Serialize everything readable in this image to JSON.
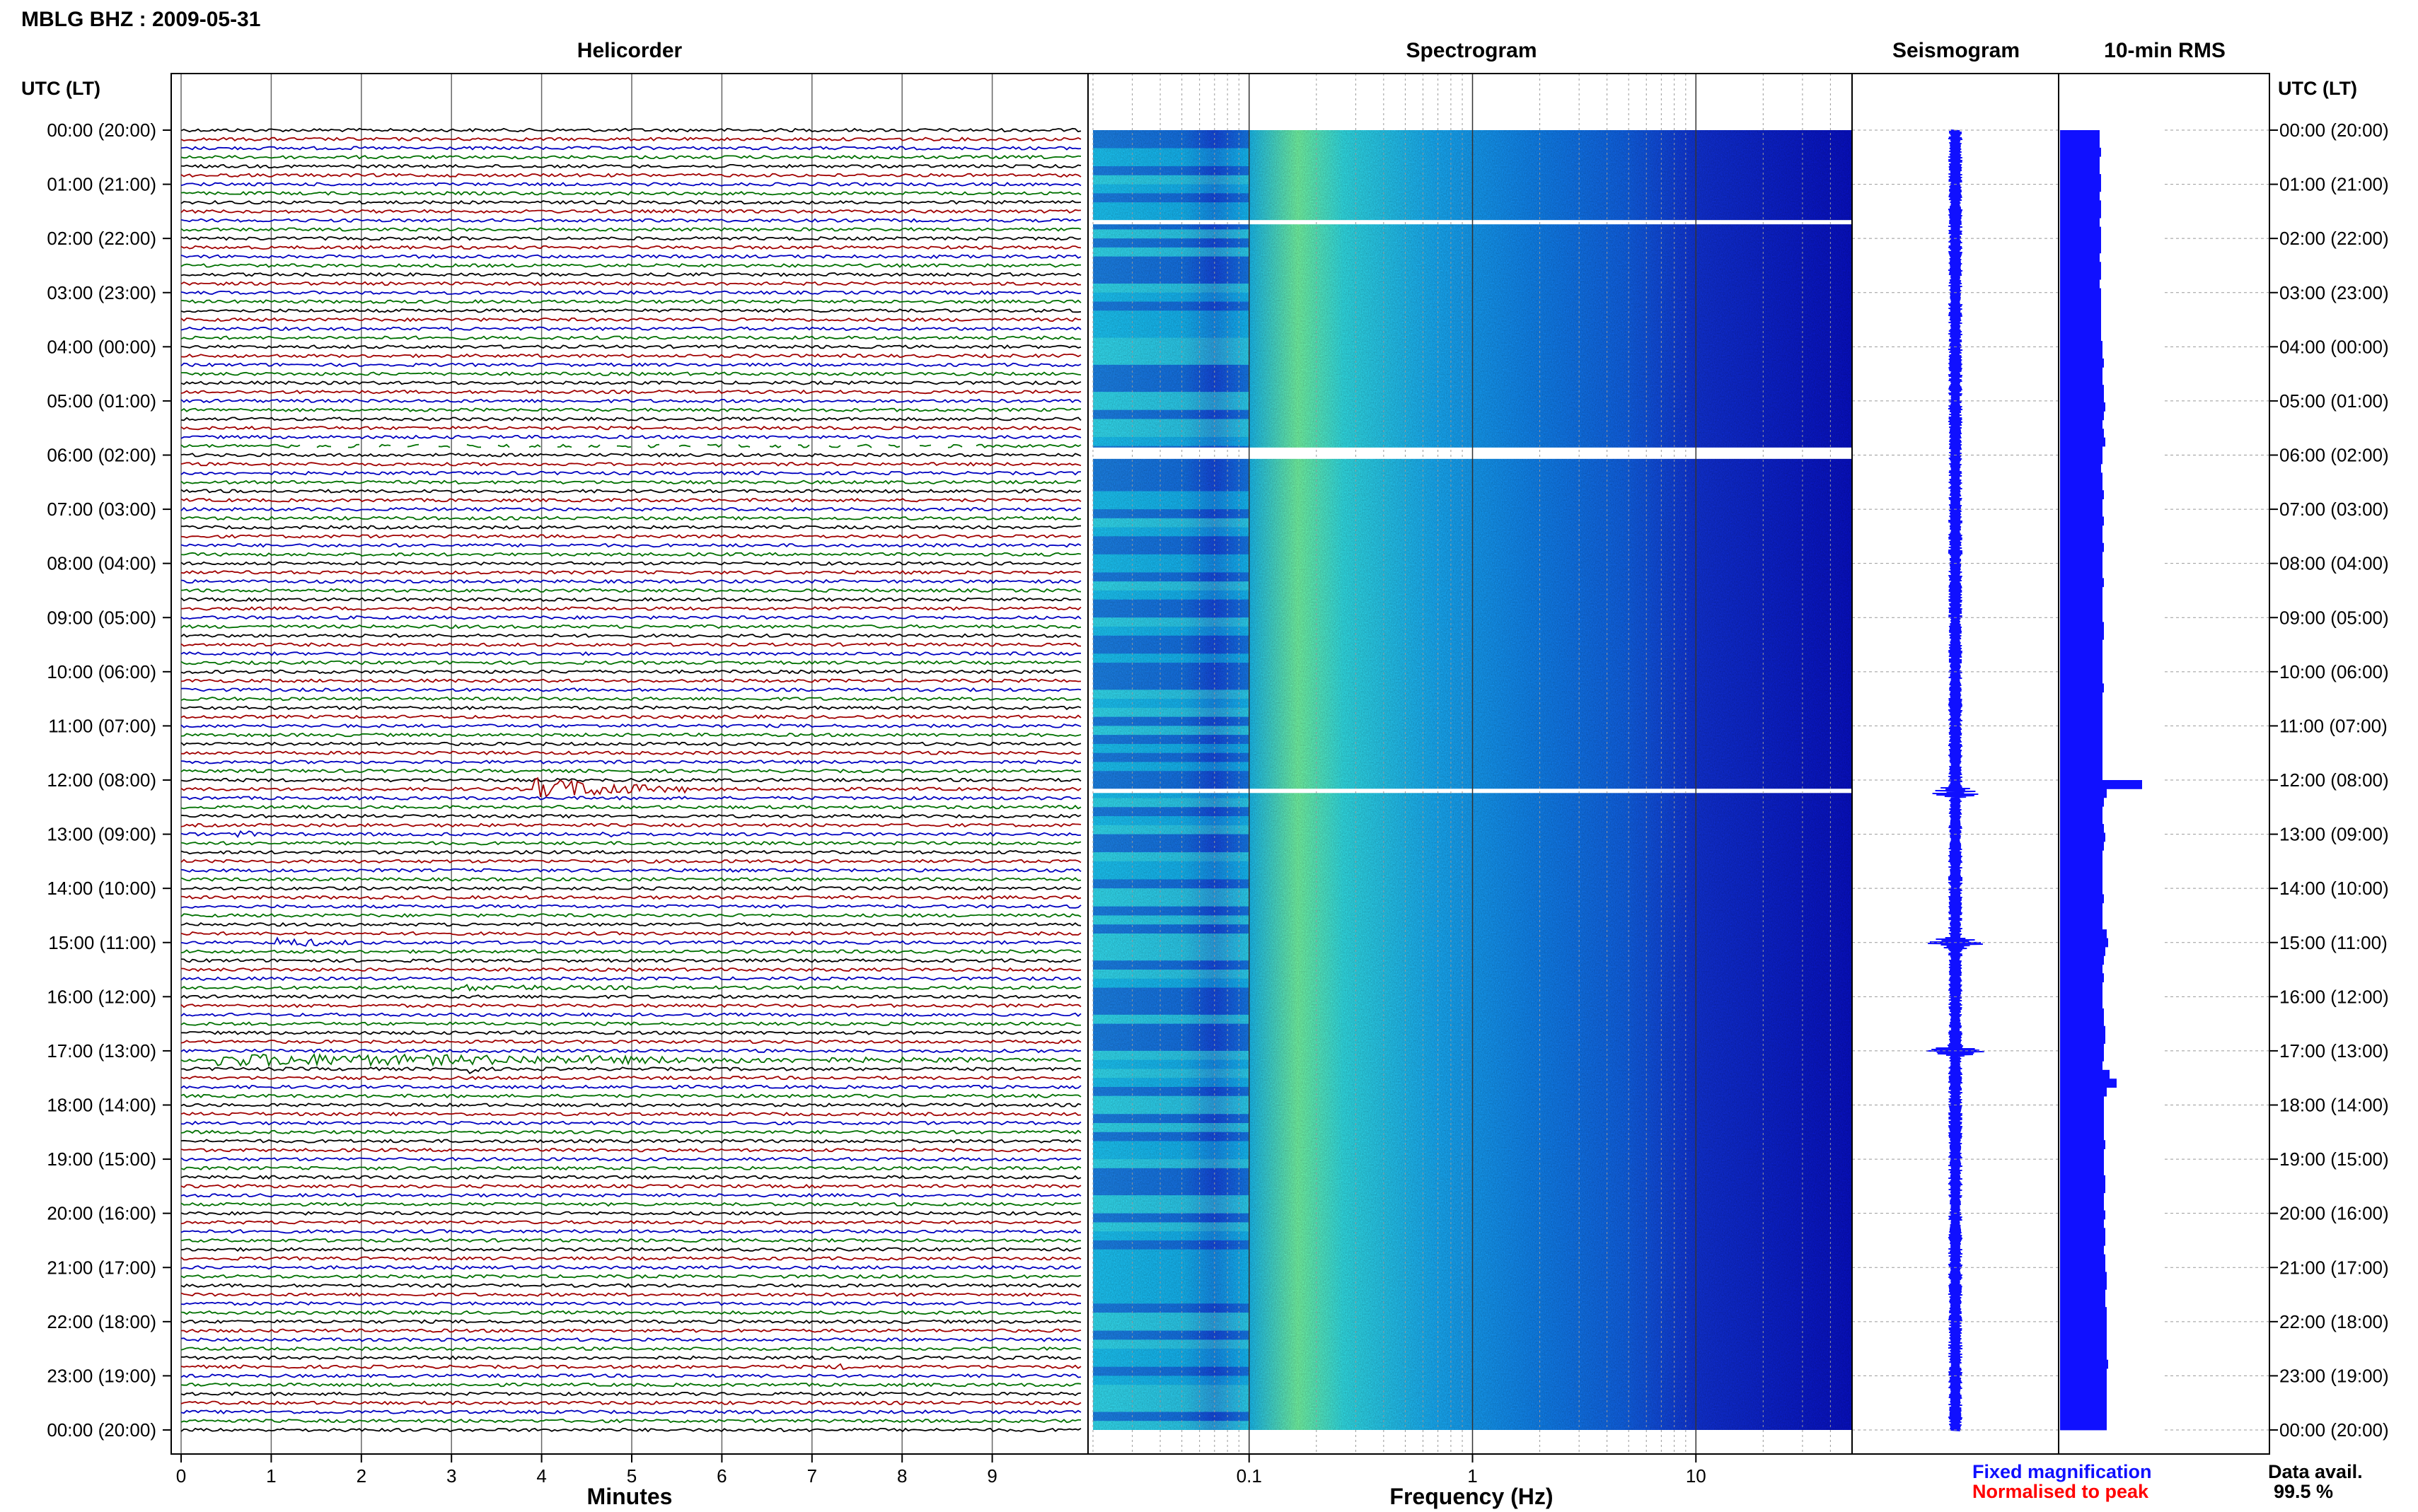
{
  "header": {
    "station": "MBLG BHZ : 2009-05-31",
    "utc_label_left": "UTC (LT)",
    "utc_label_right": "UTC (LT)"
  },
  "panels": {
    "helicorder": "Helicorder",
    "spectrogram": "Spectrogram",
    "seismogram": "Seismogram",
    "rms": "10-min RMS"
  },
  "axes": {
    "minutes_label": "Minutes",
    "frequency_label": "Frequency (Hz)"
  },
  "legend": {
    "fixed": "Fixed magnification",
    "fixed_color": "#1010ff",
    "normalised": "Normalised to peak",
    "normalised_color": "#ff0000"
  },
  "data_availability": {
    "label": "Data avail.",
    "value": "99.5 %"
  },
  "colors": {
    "trace_colors": [
      "#000000",
      "#a00000",
      "#0000c0",
      "#007000"
    ],
    "rms_color": "#1010ff",
    "seismogram_color": "#1010ff",
    "spectrogram_low": "#0000cc",
    "spectrogram_mid": "#00ccff",
    "spectrogram_high": "#ccff66"
  },
  "chart_data": [
    {
      "type": "line",
      "panel": "Helicorder",
      "xlabel": "Minutes",
      "x_ticks": [
        "0",
        "1",
        "2",
        "3",
        "4",
        "5",
        "6",
        "7",
        "8",
        "9"
      ],
      "xlim": [
        0,
        10
      ],
      "row_labels": [
        "00:00 (20:00)",
        "01:00 (21:00)",
        "02:00 (22:00)",
        "03:00 (23:00)",
        "04:00 (00:00)",
        "05:00 (01:00)",
        "06:00 (02:00)",
        "07:00 (03:00)",
        "08:00 (04:00)",
        "09:00 (05:00)",
        "10:00 (06:00)",
        "11:00 (07:00)",
        "12:00 (08:00)",
        "13:00 (09:00)",
        "14:00 (10:00)",
        "15:00 (11:00)",
        "16:00 (12:00)",
        "17:00 (13:00)",
        "18:00 (14:00)",
        "19:00 (15:00)",
        "20:00 (16:00)",
        "21:00 (17:00)",
        "22:00 (18:00)",
        "23:00 (19:00)",
        "00:00 (20:00)"
      ],
      "traces_per_hour": 6,
      "events": [
        {
          "hour": 12,
          "trace": 1,
          "start_min": 3.9,
          "end_min": 5.6,
          "amp": 1.0
        },
        {
          "hour": 13,
          "trace": 0,
          "start_min": 0.6,
          "end_min": 1.0,
          "amp": 0.25
        },
        {
          "hour": 13,
          "trace": 0,
          "start_min": 4.6,
          "end_min": 5.1,
          "amp": 0.25
        },
        {
          "hour": 15,
          "trace": 0,
          "start_min": 1.0,
          "end_min": 1.9,
          "amp": 0.4
        },
        {
          "hour": 15,
          "trace": 5,
          "start_min": 3.0,
          "end_min": 5.0,
          "amp": 0.2
        },
        {
          "hour": 17,
          "trace": 1,
          "start_min": 0.4,
          "end_min": 8.9,
          "amp": 0.5
        },
        {
          "hour": 17,
          "trace": 2,
          "start_min": 3.2,
          "end_min": 3.3,
          "amp": 0.5
        },
        {
          "hour": 22,
          "trace": 5,
          "start_min": 7.2,
          "end_min": 7.4,
          "amp": 0.4
        }
      ],
      "gaps": [
        {
          "hour": 5,
          "trace": 5,
          "start_min": 1.3,
          "end_min": 8.8
        }
      ]
    },
    {
      "type": "heatmap",
      "panel": "Spectrogram",
      "xlabel": "Frequency (Hz)",
      "x_scale": "log",
      "x_ticks": [
        "0.1",
        "1",
        "10"
      ],
      "xlim": [
        0.02,
        50
      ],
      "peak_frequency_hz": 0.25,
      "gaps_utc_hours": [
        1.7,
        5.9,
        12.2
      ]
    },
    {
      "type": "line",
      "panel": "Seismogram",
      "events_utc_hours": [
        12.2,
        15.0,
        17.0
      ]
    },
    {
      "type": "bar",
      "panel": "10-min RMS",
      "note": "10-min RMS, one bar per 10 minutes, relative amplitude",
      "values": [
        0.28,
        0.28,
        0.29,
        0.28,
        0.28,
        0.29,
        0.29,
        0.28,
        0.29,
        0.29,
        0.28,
        0.29,
        0.29,
        0.29,
        0.28,
        0.29,
        0.29,
        0.28,
        0.29,
        0.29,
        0.29,
        0.29,
        0.29,
        0.29,
        0.3,
        0.3,
        0.31,
        0.3,
        0.3,
        0.31,
        0.31,
        0.32,
        0.31,
        0.3,
        0.31,
        0.32,
        0.3,
        0.3,
        0.29,
        0.3,
        0.3,
        0.31,
        0.3,
        0.3,
        0.31,
        0.3,
        0.3,
        0.31,
        0.3,
        0.3,
        0.3,
        0.31,
        0.3,
        0.3,
        0.3,
        0.3,
        0.31,
        0.31,
        0.3,
        0.3,
        0.3,
        0.3,
        0.3,
        0.31,
        0.3,
        0.3,
        0.3,
        0.3,
        0.3,
        0.3,
        0.3,
        0.3,
        0.3,
        0.3,
        0.58,
        0.33,
        0.31,
        0.3,
        0.3,
        0.31,
        0.32,
        0.31,
        0.3,
        0.3,
        0.3,
        0.3,
        0.3,
        0.31,
        0.3,
        0.3,
        0.3,
        0.33,
        0.34,
        0.32,
        0.31,
        0.3,
        0.31,
        0.3,
        0.3,
        0.3,
        0.31,
        0.31,
        0.32,
        0.32,
        0.31,
        0.31,
        0.3,
        0.35,
        0.4,
        0.33,
        0.31,
        0.31,
        0.31,
        0.31,
        0.31,
        0.32,
        0.31,
        0.31,
        0.31,
        0.32,
        0.32,
        0.31,
        0.31,
        0.32,
        0.31,
        0.32,
        0.32,
        0.31,
        0.32,
        0.32,
        0.33,
        0.33,
        0.32,
        0.32,
        0.33,
        0.33,
        0.33,
        0.33,
        0.33,
        0.33,
        0.34,
        0.33,
        0.33,
        0.33,
        0.33,
        0.33,
        0.33,
        0.33
      ]
    }
  ]
}
